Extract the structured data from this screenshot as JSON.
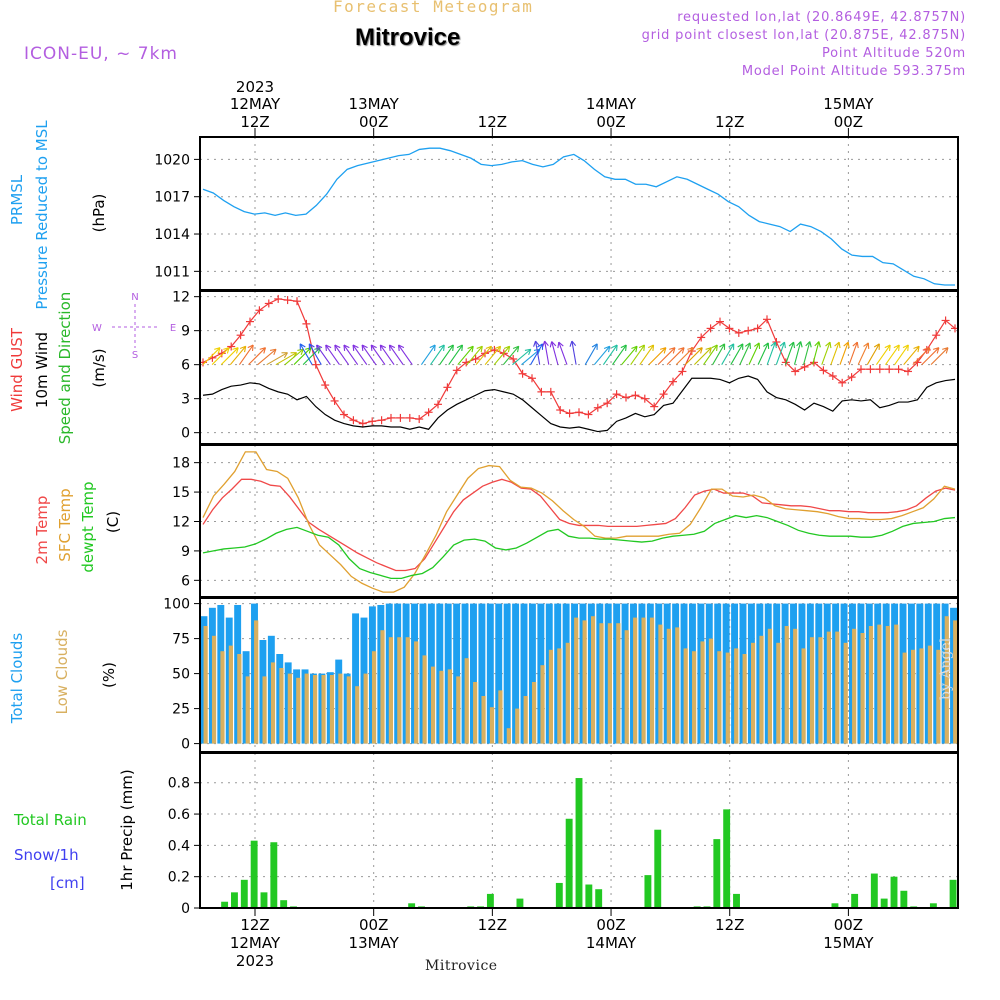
{
  "header": {
    "subtitle": "Forecast Meteogram",
    "title": "Mitrovice",
    "model": "ICON-EU, ~ 7km",
    "requested": "requested lon,lat (20.8649E, 42.8757N)",
    "gridpoint": "grid point closest lon,lat (20.875E, 42.875N)",
    "altitude": "Point Altitude 520m",
    "model_altitude": "Model Point Altitude 593.375m",
    "footer": "Mitrovice",
    "watermark": "by Angel"
  },
  "colors": {
    "pressure": "#1ea0f0",
    "gust": "#f03a3a",
    "wind": "#000000",
    "dir_label": "#2ab82a",
    "temp2m": "#f04848",
    "sfc_temp": "#e0a030",
    "dewpt": "#22c822",
    "total_clouds": "#1ea0f0",
    "low_clouds": "#d8b060",
    "rain": "#22c822",
    "snow_label": "#3f3ff0",
    "purple": "#b35ee0",
    "title_gold": "#e8c070"
  },
  "time_axis": {
    "top": [
      {
        "t": 0,
        "l1": "2023",
        "l2": "12MAY",
        "l3": "12Z"
      },
      {
        "t": 12,
        "l1": "",
        "l2": "13MAY",
        "l3": "00Z"
      },
      {
        "t": 24,
        "l1": "",
        "l2": "",
        "l3": "12Z"
      },
      {
        "t": 36,
        "l1": "",
        "l2": "14MAY",
        "l3": "00Z"
      },
      {
        "t": 48,
        "l1": "",
        "l2": "",
        "l3": "12Z"
      },
      {
        "t": 60,
        "l1": "",
        "l2": "15MAY",
        "l3": "00Z"
      }
    ],
    "bottom": [
      {
        "t": 0,
        "l1": "12Z",
        "l2": "12MAY",
        "l3": "2023"
      },
      {
        "t": 12,
        "l1": "00Z",
        "l2": "13MAY",
        "l3": ""
      },
      {
        "t": 24,
        "l1": "12Z",
        "l2": "",
        "l3": ""
      },
      {
        "t": 36,
        "l1": "00Z",
        "l2": "14MAY",
        "l3": ""
      },
      {
        "t": 48,
        "l1": "12Z",
        "l2": "",
        "l3": ""
      },
      {
        "t": 60,
        "l1": "00Z",
        "l2": "15MAY",
        "l3": ""
      }
    ]
  },
  "chart_data": [
    {
      "type": "line",
      "ylabel": [
        "PRMSL",
        "Pressure Reduced to MSL",
        "(hPa)"
      ],
      "yticks": [
        1011,
        1014,
        1017,
        1020
      ],
      "ylim": [
        1009.5,
        1021.8
      ],
      "grid": true,
      "series": [
        {
          "values": [
            1017.6,
            1017.3,
            1016.7,
            1016.2,
            1015.8,
            1015.6,
            1015.7,
            1015.5,
            1015.7,
            1015.5,
            1015.6,
            1016.3,
            1017.2,
            1018.4,
            1019.2,
            1019.5,
            1019.7,
            1019.9,
            1020.1,
            1020.3,
            1020.4,
            1020.8,
            1020.9,
            1020.9,
            1020.7,
            1020.4,
            1020.1,
            1019.6,
            1019.5,
            1019.6,
            1019.8,
            1019.9,
            1019.6,
            1019.4,
            1019.6,
            1020.2,
            1020.4,
            1019.9,
            1019.2,
            1018.6,
            1018.4,
            1018.4,
            1018.0,
            1018.0,
            1017.8,
            1018.2,
            1018.6,
            1018.4,
            1018.0,
            1017.6,
            1017.2,
            1016.6,
            1016.2,
            1015.5,
            1015.0,
            1014.8,
            1014.6,
            1014.2,
            1014.8,
            1014.6,
            1014.2,
            1013.6,
            1012.8,
            1012.3,
            1012.2,
            1012.2,
            1011.7,
            1011.6,
            1011.1,
            1010.6,
            1010.4,
            1010.0,
            1009.9,
            1009.9
          ]
        }
      ]
    },
    {
      "type": "line",
      "ylabel": [
        "Wind GUST",
        "10m Wind",
        "Speed and Direction",
        "(m/s)"
      ],
      "compass": {
        "north": "N",
        "south": "S",
        "west": "W",
        "east": "E"
      },
      "yticks": [
        0,
        3,
        6,
        9,
        12
      ],
      "ylim": [
        -1,
        12.5
      ],
      "grid": true,
      "series": [
        {
          "name": "Wind GUST",
          "values": [
            6.2,
            6.6,
            7.0,
            7.6,
            8.6,
            9.8,
            10.8,
            11.4,
            11.8,
            11.7,
            11.6,
            9.6,
            6.0,
            4.2,
            2.8,
            1.6,
            1.1,
            0.8,
            1.0,
            1.1,
            1.3,
            1.3,
            1.3,
            1.2,
            1.8,
            2.5,
            4.0,
            5.5,
            6.2,
            6.5,
            7.0,
            7.3,
            7.0,
            6.5,
            5.2,
            4.8,
            3.6,
            3.6,
            2.0,
            1.7,
            1.8,
            1.6,
            2.2,
            2.6,
            3.4,
            3.1,
            3.3,
            3.0,
            2.3,
            3.4,
            4.5,
            5.4,
            7.2,
            8.4,
            9.2,
            9.8,
            9.2,
            8.8,
            9.0,
            9.2,
            10.0,
            8.0,
            6.2,
            5.4,
            5.8,
            6.2,
            5.5,
            5.0,
            4.4,
            4.9,
            5.6,
            5.6,
            5.6,
            5.6,
            5.6,
            5.4,
            6.2,
            7.3,
            8.6,
            9.9,
            9.2
          ]
        },
        {
          "name": "10m Wind",
          "values": [
            3.3,
            3.4,
            3.8,
            4.1,
            4.2,
            4.4,
            4.3,
            3.9,
            3.6,
            3.4,
            2.9,
            3.2,
            2.3,
            1.6,
            1.1,
            0.8,
            0.6,
            0.5,
            0.6,
            0.6,
            0.5,
            0.5,
            0.3,
            0.5,
            0.3,
            1.3,
            2.0,
            2.5,
            2.9,
            3.3,
            3.7,
            3.8,
            3.6,
            3.4,
            2.9,
            2.2,
            1.5,
            0.8,
            0.5,
            0.4,
            0.5,
            0.3,
            0.1,
            0.2,
            1.0,
            1.3,
            1.7,
            1.4,
            1.6,
            2.4,
            2.6,
            3.7,
            4.8,
            4.8,
            4.8,
            4.7,
            4.4,
            4.8,
            5.0,
            4.7,
            3.6,
            3.1,
            2.9,
            2.5,
            2.0,
            2.6,
            2.3,
            1.9,
            2.8,
            2.9,
            2.8,
            2.9,
            2.2,
            2.4,
            2.7,
            2.7,
            2.9,
            4.0,
            4.4,
            4.6,
            4.7
          ]
        }
      ],
      "arrows_deg": [
        45,
        45,
        45,
        50,
        55,
        45,
        40,
        30,
        30,
        40,
        45,
        45,
        120,
        120,
        125,
        125,
        125,
        125,
        125,
        125,
        125,
        125,
        125,
        125,
        55,
        55,
        55,
        55,
        50,
        50,
        50,
        50,
        50,
        50,
        40,
        40,
        60,
        100,
        100,
        105,
        110,
        100,
        60,
        50,
        55,
        55,
        50,
        55,
        55,
        45,
        45,
        45,
        45,
        45,
        45,
        55,
        60,
        60,
        60,
        65,
        65,
        65,
        70,
        70,
        70,
        75,
        75,
        75,
        70,
        70,
        70,
        70,
        65,
        60,
        55,
        55,
        55,
        50,
        45,
        45,
        45
      ],
      "arrow_colors": [
        "#f0d000",
        "#f0d000",
        "#f0d000",
        "#e8b000",
        "#f07030",
        "#f07030",
        "#e87830",
        "#d0a030",
        "#c8c000",
        "#90d000",
        "#50d000",
        "#20c040",
        "#2060f0",
        "#3050f0",
        "#7030e0",
        "#8030e0",
        "#8030e0",
        "#8030e0",
        "#8030e0",
        "#8030e0",
        "#8030e0",
        "#8030e0",
        "#8030e0",
        "#8030e0",
        "#20a0e0",
        "#20c0a0",
        "#20c040",
        "#20c040",
        "#60d000",
        "#a0d000",
        "#e0c000",
        "#e0c000",
        "#a0d000",
        "#30c040",
        "#20c0a0",
        "#20a0e0",
        "#2060f0",
        "#5040e0",
        "#8030e0",
        "#8030e0",
        "#8030e0",
        "#5040e0",
        "#2080e0",
        "#20a0e0",
        "#20c0a0",
        "#20c040",
        "#60d000",
        "#a0d000",
        "#e0c000",
        "#f0a000",
        "#f07030",
        "#f07030",
        "#f08030",
        "#e0a000",
        "#c0c000",
        "#80d000",
        "#30c040",
        "#20c0a0",
        "#20c040",
        "#30c040",
        "#60d000",
        "#20c040",
        "#20c0a0",
        "#20c0a0",
        "#20c040",
        "#20c040",
        "#30c040",
        "#60d000",
        "#a0d000",
        "#e0c000",
        "#f0a000",
        "#f07030",
        "#f08030",
        "#e0a000"
      ]
    },
    {
      "type": "line",
      "ylabel": [
        "2m Temp",
        "SFC Temp",
        "dewpt Temp",
        "(C)"
      ],
      "yticks": [
        6,
        9,
        12,
        15,
        18
      ],
      "ylim": [
        4.3,
        19.8
      ],
      "grid": true,
      "series": [
        {
          "name": "2m Temp",
          "values": [
            11.7,
            13.2,
            14.4,
            15.3,
            16.3,
            16.3,
            16.1,
            15.7,
            15.6,
            14.5,
            13.2,
            11.9,
            11.2,
            10.6,
            10.0,
            9.4,
            8.8,
            8.3,
            7.8,
            7.4,
            7.0,
            7.0,
            7.2,
            8.2,
            9.8,
            11.4,
            13.0,
            14.2,
            14.9,
            15.6,
            16.0,
            16.3,
            16.0,
            15.4,
            15.3,
            14.6,
            13.4,
            12.2,
            11.8,
            11.6,
            11.6,
            11.6,
            11.5,
            11.5,
            11.5,
            11.5,
            11.6,
            11.7,
            11.8,
            12.3,
            13.4,
            14.7,
            15.1,
            15.3,
            14.9,
            14.9,
            14.9,
            14.6,
            13.9,
            13.8,
            13.7,
            13.6,
            13.6,
            13.5,
            13.3,
            13.1,
            13.1,
            13.0,
            13.0,
            12.9,
            12.9,
            12.9,
            13.0,
            13.2,
            13.6,
            14.4,
            15.1,
            15.4,
            15.2
          ]
        },
        {
          "name": "SFC Temp",
          "values": [
            12.4,
            14.6,
            15.8,
            17.1,
            19.1,
            19.1,
            17.3,
            17.1,
            16.4,
            14.4,
            11.7,
            9.6,
            8.6,
            7.6,
            6.4,
            5.7,
            5.2,
            4.8,
            4.8,
            5.3,
            6.7,
            8.6,
            10.6,
            13.0,
            14.7,
            16.4,
            17.4,
            17.7,
            17.6,
            16.2,
            15.5,
            15.4,
            14.9,
            14.1,
            13.1,
            12.2,
            11.5,
            10.5,
            10.3,
            10.3,
            10.5,
            10.5,
            10.5,
            10.5,
            10.7,
            10.8,
            11.7,
            13.4,
            15.3,
            15.3,
            14.6,
            14.5,
            14.7,
            14.4,
            13.6,
            13.3,
            13.2,
            13.1,
            13.0,
            12.8,
            12.5,
            12.3,
            12.3,
            12.2,
            12.2,
            12.3,
            12.6,
            13.0,
            13.4,
            14.3,
            15.6,
            15.3
          ]
        },
        {
          "name": "dewpt Temp",
          "values": [
            8.8,
            9.0,
            9.2,
            9.3,
            9.4,
            9.7,
            10.2,
            10.8,
            11.2,
            11.4,
            11.0,
            10.6,
            10.4,
            9.6,
            8.2,
            7.2,
            6.8,
            6.5,
            6.2,
            6.2,
            6.5,
            6.7,
            7.3,
            8.4,
            9.6,
            10.1,
            10.2,
            10.0,
            9.3,
            9.1,
            9.3,
            9.8,
            10.4,
            11.0,
            11.2,
            10.5,
            10.3,
            10.3,
            10.2,
            10.2,
            10.1,
            10.0,
            9.9,
            10.0,
            10.3,
            10.5,
            10.6,
            10.7,
            11.0,
            11.8,
            12.2,
            12.6,
            12.4,
            12.6,
            12.4,
            12.0,
            11.6,
            11.1,
            10.8,
            10.6,
            10.5,
            10.5,
            10.5,
            10.4,
            10.4,
            10.6,
            11.0,
            11.5,
            11.8,
            11.9,
            12.0,
            12.3,
            12.4
          ]
        }
      ]
    },
    {
      "type": "bar",
      "ylabel": [
        "Total Clouds",
        "Low Clouds",
        "(%)"
      ],
      "yticks": [
        0,
        25,
        50,
        75,
        100
      ],
      "ylim": [
        -6,
        104
      ],
      "grid": true,
      "series": [
        {
          "name": "Total Clouds",
          "values": [
            91,
            97,
            99,
            90,
            99,
            66,
            100,
            74,
            77,
            64,
            58,
            53,
            53,
            50,
            50,
            51,
            60,
            50,
            93,
            90,
            98,
            99,
            100,
            100,
            100,
            100,
            100,
            100,
            100,
            100,
            100,
            100,
            100,
            100,
            100,
            100,
            100,
            100,
            100,
            100,
            100,
            100,
            100,
            100,
            100,
            100,
            100,
            100,
            100,
            100,
            100,
            100,
            100,
            100,
            100,
            100,
            100,
            100,
            100,
            100,
            100,
            100,
            100,
            100,
            100,
            100,
            100,
            100,
            100,
            100,
            100,
            100,
            100,
            100,
            100,
            100,
            100,
            100,
            100,
            100,
            100,
            100,
            100,
            100,
            100,
            100,
            100,
            100,
            100,
            97
          ]
        },
        {
          "name": "Low Clouds",
          "values": [
            84,
            77,
            66,
            70,
            64,
            48,
            88,
            48,
            58,
            54,
            50,
            47,
            50,
            49,
            49,
            49,
            50,
            48,
            41,
            50,
            66,
            81,
            76,
            76,
            76,
            73,
            63,
            55,
            52,
            53,
            48,
            61,
            44,
            34,
            26,
            38,
            11,
            25,
            34,
            44,
            56,
            67,
            68,
            72,
            90,
            88,
            91,
            86,
            86,
            86,
            81,
            90,
            90,
            90,
            85,
            82,
            83,
            68,
            66,
            73,
            75,
            66,
            65,
            68,
            64,
            72,
            77,
            82,
            72,
            84,
            82,
            68,
            76,
            76,
            80,
            80,
            72,
            82,
            79,
            84,
            85,
            84,
            85,
            65,
            67,
            68,
            70,
            67,
            91,
            88
          ]
        }
      ]
    },
    {
      "type": "bar",
      "ylabel": [
        "1hr Precip (mm)"
      ],
      "legend": [
        "Total  Rain",
        "Snow/1h",
        "[cm]"
      ],
      "yticks": [
        0,
        0.2,
        0.4,
        0.6,
        0.8
      ],
      "ylim": [
        0,
        0.99
      ],
      "grid": true,
      "series": [
        {
          "name": "Total Rain",
          "values": [
            0,
            0,
            0.04,
            0.1,
            0.18,
            0.43,
            0.1,
            0.42,
            0.05,
            0.01,
            0,
            0,
            0,
            0,
            0,
            0,
            0,
            0,
            0,
            0,
            0,
            0.03,
            0.01,
            0,
            0,
            0,
            0,
            0.01,
            0.01,
            0.09,
            0,
            0,
            0.06,
            0,
            0,
            0,
            0.16,
            0.57,
            0.83,
            0.15,
            0.12,
            0,
            0,
            0,
            0,
            0.21,
            0.5,
            0,
            0,
            0,
            0.01,
            0.01,
            0.44,
            0.63,
            0.09,
            0,
            0,
            0,
            0,
            0,
            0,
            0,
            0,
            0,
            0.03,
            0,
            0.09,
            0,
            0.22,
            0.06,
            0.2,
            0.11,
            0.01,
            0,
            0.03,
            0,
            0.18
          ]
        }
      ]
    }
  ]
}
